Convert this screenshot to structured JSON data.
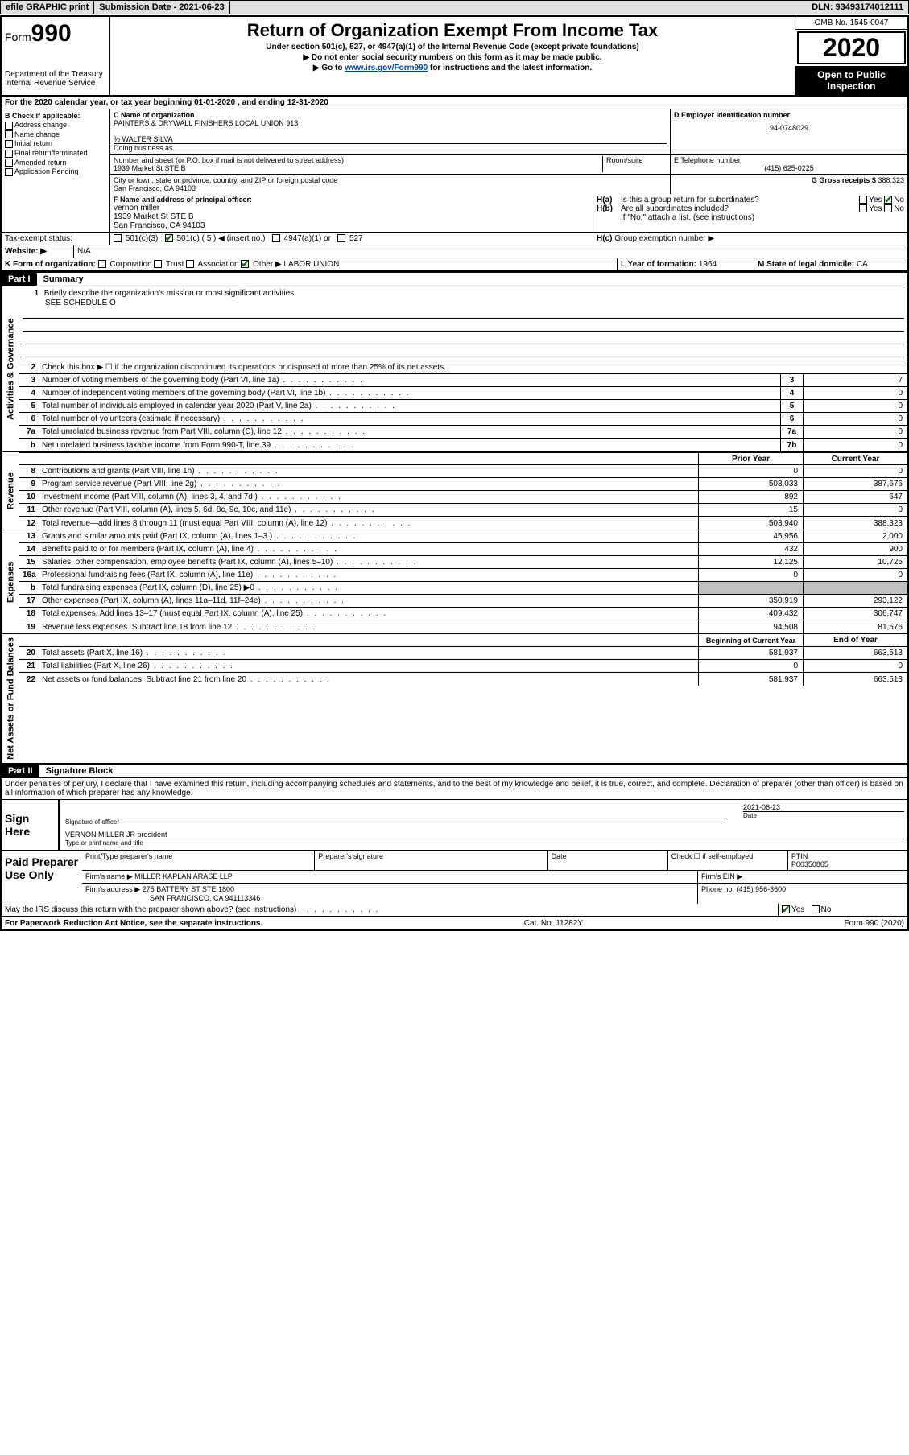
{
  "colors": {
    "link": "#0645ad",
    "check": "#1a6b1a",
    "grey_fill": "#c0c0c0",
    "black": "#000000",
    "white": "#ffffff",
    "topbar_bg": "#e0e0e0"
  },
  "topbar": {
    "efile": "efile GRAPHIC print",
    "submission": "Submission Date - 2021-06-23",
    "dln": "DLN: 93493174012111"
  },
  "header": {
    "form_word": "Form",
    "form_num": "990",
    "dept1": "Department of the Treasury",
    "dept2": "Internal Revenue Service",
    "title": "Return of Organization Exempt From Income Tax",
    "sub": "Under section 501(c), 527, or 4947(a)(1) of the Internal Revenue Code (except private foundations)",
    "tri1": "Do not enter social security numbers on this form as it may be made public.",
    "tri2_a": "Go to ",
    "tri2_link": "www.irs.gov/Form990",
    "tri2_b": " for instructions and the latest information.",
    "omb": "OMB No. 1545-0047",
    "year": "2020",
    "inspect1": "Open to Public",
    "inspect2": "Inspection"
  },
  "line_a": "For the 2020 calendar year, or tax year beginning 01-01-2020    , and ending 12-31-2020",
  "box_b": {
    "hdr": "B Check if applicable:",
    "addr": "Address change",
    "name": "Name change",
    "init": "Initial return",
    "final": "Final return/terminated",
    "amend": "Amended return",
    "app": "Application Pending"
  },
  "box_c": {
    "hdr": "C Name of organization",
    "org": "PAINTERS & DRYWALL FINISHERS LOCAL UNION 913",
    "care": "% WALTER SILVA",
    "dba_lbl": "Doing business as",
    "street_lbl": "Number and street (or P.O. box if mail is not delivered to street address)",
    "room_lbl": "Room/suite",
    "street": "1939 Market St STE B",
    "city_lbl": "City or town, state or province, country, and ZIP or foreign postal code",
    "city": "San Francisco, CA  94103"
  },
  "box_d": {
    "hdr": "D Employer identification number",
    "val": "94-0748029"
  },
  "box_e": {
    "hdr": "E Telephone number",
    "val": "(415) 625-0225"
  },
  "box_g": {
    "lbl": "G Gross receipts $",
    "val": "388,323"
  },
  "box_f": {
    "hdr": "F  Name and address of principal officer:",
    "name": "vernon miller",
    "addr1": "1939 Market St STE B",
    "addr2": "San Francisco, CA  94103"
  },
  "box_h": {
    "a": "Is this a group return for subordinates?",
    "b": "Are all subordinates included?",
    "b_note": "If \"No,\" attach a list. (see instructions)",
    "c": "Group exemption number ▶",
    "yes": "Yes",
    "no": "No"
  },
  "tax_exempt": {
    "lbl": "Tax-exempt status:",
    "c3": "501(c)(3)",
    "c": "501(c) ( 5 ) ◀ (insert no.)",
    "a1": "4947(a)(1) or",
    "s527": "527"
  },
  "box_j": {
    "lbl": "Website: ▶",
    "val": "N/A"
  },
  "box_k": {
    "lbl": "K Form of organization:",
    "corp": "Corporation",
    "trust": "Trust",
    "assoc": "Association",
    "other": "Other ▶",
    "other_val": "LABOR UNION"
  },
  "box_l": {
    "lbl": "L Year of formation:",
    "val": "1964"
  },
  "box_m": {
    "lbl": "M State of legal domicile:",
    "val": "CA"
  },
  "part1": {
    "num": "Part I",
    "title": "Summary",
    "l1": "Briefly describe the organization's mission or most significant activities:",
    "l1_val": "SEE SCHEDULE O",
    "l2": "Check this box ▶ ☐  if the organization discontinued its operations or disposed of more than 25% of its net assets.",
    "tabs": {
      "gov": "Activities & Governance",
      "rev": "Revenue",
      "exp": "Expenses",
      "net": "Net Assets or Fund Balances"
    },
    "hdr_prior": "Prior Year",
    "hdr_current": "Current Year",
    "hdr_begin": "Beginning of Current Year",
    "hdr_end": "End of Year",
    "rows_gov": [
      {
        "n": "3",
        "t": "Number of voting members of the governing body (Part VI, line 1a)",
        "box": "3",
        "v": "7"
      },
      {
        "n": "4",
        "t": "Number of independent voting members of the governing body (Part VI, line 1b)",
        "box": "4",
        "v": "0"
      },
      {
        "n": "5",
        "t": "Total number of individuals employed in calendar year 2020 (Part V, line 2a)",
        "box": "5",
        "v": "0"
      },
      {
        "n": "6",
        "t": "Total number of volunteers (estimate if necessary)",
        "box": "6",
        "v": "0"
      },
      {
        "n": "7a",
        "t": "Total unrelated business revenue from Part VIII, column (C), line 12",
        "box": "7a",
        "v": "0"
      },
      {
        "n": "b",
        "t": "Net unrelated business taxable income from Form 990-T, line 39",
        "box": "7b",
        "v": "0"
      }
    ],
    "rows_rev": [
      {
        "n": "8",
        "t": "Contributions and grants (Part VIII, line 1h)",
        "p": "0",
        "c": "0"
      },
      {
        "n": "9",
        "t": "Program service revenue (Part VIII, line 2g)",
        "p": "503,033",
        "c": "387,676"
      },
      {
        "n": "10",
        "t": "Investment income (Part VIII, column (A), lines 3, 4, and 7d )",
        "p": "892",
        "c": "647"
      },
      {
        "n": "11",
        "t": "Other revenue (Part VIII, column (A), lines 5, 6d, 8c, 9c, 10c, and 11e)",
        "p": "15",
        "c": "0"
      },
      {
        "n": "12",
        "t": "Total revenue—add lines 8 through 11 (must equal Part VIII, column (A), line 12)",
        "p": "503,940",
        "c": "388,323"
      }
    ],
    "rows_exp": [
      {
        "n": "13",
        "t": "Grants and similar amounts paid (Part IX, column (A), lines 1–3 )",
        "p": "45,956",
        "c": "2,000"
      },
      {
        "n": "14",
        "t": "Benefits paid to or for members (Part IX, column (A), line 4)",
        "p": "432",
        "c": "900"
      },
      {
        "n": "15",
        "t": "Salaries, other compensation, employee benefits (Part IX, column (A), lines 5–10)",
        "p": "12,125",
        "c": "10,725"
      },
      {
        "n": "16a",
        "t": "Professional fundraising fees (Part IX, column (A), line 11e)",
        "p": "0",
        "c": "0"
      },
      {
        "n": "b",
        "t": "Total fundraising expenses (Part IX, column (D), line 25) ▶0",
        "p": "grey",
        "c": "grey"
      },
      {
        "n": "17",
        "t": "Other expenses (Part IX, column (A), lines 11a–11d, 11f–24e)",
        "p": "350,919",
        "c": "293,122"
      },
      {
        "n": "18",
        "t": "Total expenses. Add lines 13–17 (must equal Part IX, column (A), line 25)",
        "p": "409,432",
        "c": "306,747"
      },
      {
        "n": "19",
        "t": "Revenue less expenses. Subtract line 18 from line 12",
        "p": "94,508",
        "c": "81,576"
      }
    ],
    "rows_net": [
      {
        "n": "20",
        "t": "Total assets (Part X, line 16)",
        "p": "581,937",
        "c": "663,513"
      },
      {
        "n": "21",
        "t": "Total liabilities (Part X, line 26)",
        "p": "0",
        "c": "0"
      },
      {
        "n": "22",
        "t": "Net assets or fund balances. Subtract line 21 from line 20",
        "p": "581,937",
        "c": "663,513"
      }
    ]
  },
  "part2": {
    "num": "Part II",
    "title": "Signature Block",
    "decl": "Under penalties of perjury, I declare that I have examined this return, including accompanying schedules and statements, and to the best of my knowledge and belief, it is true, correct, and complete. Declaration of preparer (other than officer) is based on all information of which preparer has any knowledge."
  },
  "sign": {
    "here": "Sign Here",
    "sig_lbl": "Signature of officer",
    "date_lbl": "Date",
    "date": "2021-06-23",
    "name": "VERNON MILLER JR  president",
    "name_lbl": "Type or print name and title"
  },
  "preparer": {
    "title": "Paid Preparer Use Only",
    "h1": "Print/Type preparer's name",
    "h2": "Preparer's signature",
    "h3": "Date",
    "h4_a": "Check ☐ if self-employed",
    "h5": "PTIN",
    "ptin": "P00350865",
    "firm_lbl": "Firm's name    ▶",
    "firm": "MILLER KAPLAN ARASE LLP",
    "ein_lbl": "Firm's EIN ▶",
    "addr_lbl": "Firm's address ▶",
    "addr1": "275 BATTERY ST STE 1800",
    "addr2": "SAN FRANCISCO, CA  941113346",
    "phone_lbl": "Phone no.",
    "phone": "(415) 956-3600"
  },
  "discuss": {
    "q": "May the IRS discuss this return with the preparer shown above? (see instructions)",
    "yes": "Yes",
    "no": "No"
  },
  "footer": {
    "left": "For Paperwork Reduction Act Notice, see the separate instructions.",
    "mid": "Cat. No. 11282Y",
    "right": "Form 990 (2020)"
  }
}
